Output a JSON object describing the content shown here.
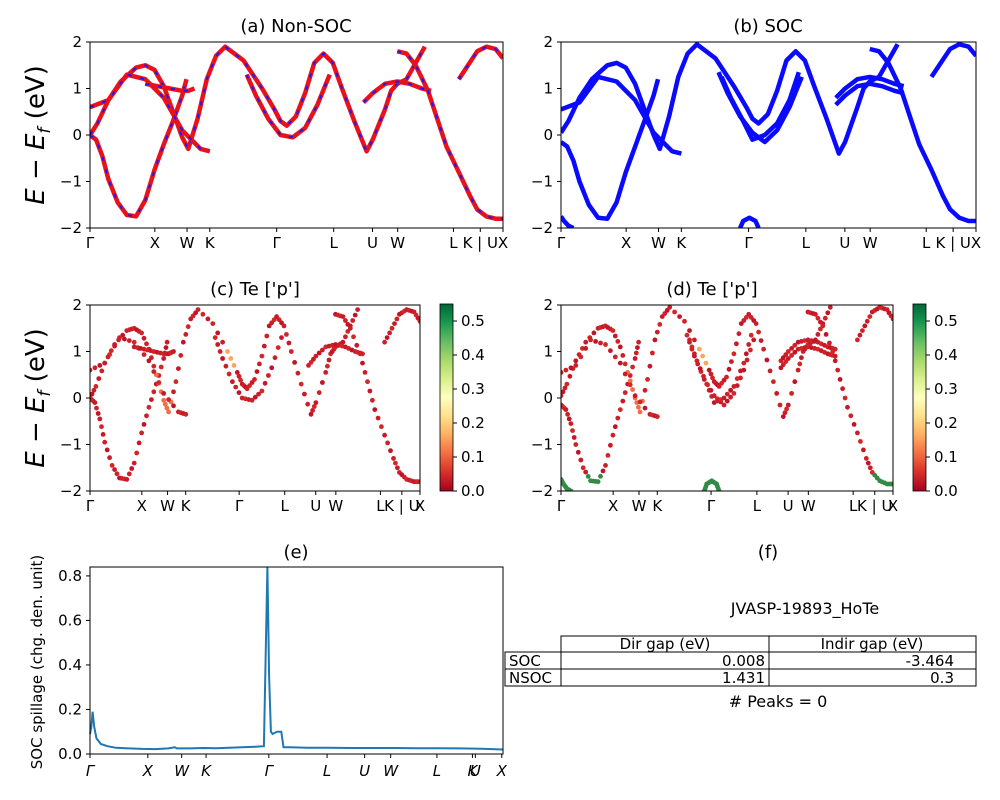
{
  "ylabel_main": "E − E",
  "ylabel_sub": "f",
  "ylabel_unit": " (eV)",
  "kpath_labels": [
    "Γ",
    "X",
    "W",
    "K",
    "Γ",
    "L",
    "U",
    "W",
    "L",
    "K | U",
    "X"
  ],
  "kpath_labels_e": [
    "Γ",
    "X",
    "W",
    "K",
    "Γ",
    "L",
    "U",
    "W",
    "L",
    "K",
    "U",
    "X"
  ],
  "colors": {
    "nonsoc_band": "#e8121c",
    "nonsoc_dash": "#1a1aff",
    "soc_band": "#0a0aff",
    "spillage_line": "#1f77b4"
  },
  "colorbar": {
    "ticks": [
      "0.0",
      "0.1",
      "0.2",
      "0.3",
      "0.4",
      "0.5"
    ],
    "cmap": "RdYlGn"
  },
  "chart_data": [
    {
      "id": "a",
      "type": "line",
      "title": "(a) Non-SOC",
      "ylim": [
        -2,
        2
      ],
      "yticks": [
        "2",
        "1",
        "0",
        "−1",
        "−2"
      ],
      "x_ticks": [
        "Γ",
        "X",
        "W",
        "K",
        "Γ",
        "L",
        "U",
        "W",
        "L",
        "K | U",
        "X"
      ],
      "series": [
        {
          "x": [
            0,
            0.1,
            0.2,
            0.3,
            0.45,
            0.6,
            0.75,
            0.9,
            1.05,
            1.2,
            1.35,
            1.5,
            1.57
          ],
          "y": [
            0,
            -0.1,
            -0.45,
            -0.95,
            -1.45,
            -1.72,
            -1.75,
            -1.4,
            -0.75,
            -0.2,
            0.3,
            0.85,
            1.2
          ]
        },
        {
          "x": [
            0,
            0.12,
            0.3,
            0.5,
            0.75,
            0.9,
            1.05,
            1.2,
            1.35,
            1.5,
            1.6,
            1.75,
            1.9,
            2.05,
            2.2,
            2.5,
            2.8,
            3.0,
            3.1,
            3.2,
            3.35,
            3.5,
            3.65,
            3.8,
            3.95,
            4.1,
            4.3,
            4.5,
            4.6,
            4.8,
            4.9,
            5.0,
            5.15,
            5.3,
            5.45
          ],
          "y": [
            0,
            0.25,
            0.75,
            1.15,
            1.45,
            1.5,
            1.4,
            1.05,
            0.5,
            -0.05,
            -0.3,
            0.35,
            1.2,
            1.7,
            1.9,
            1.6,
            1.0,
            0.55,
            0.3,
            0.2,
            0.4,
            0.9,
            1.55,
            1.75,
            1.55,
            1.0,
            0.3,
            -0.35,
            -0.1,
            0.55,
            0.95,
            1.1,
            1.2,
            1.55,
            1.9
          ]
        },
        {
          "x": [
            0,
            0.3,
            0.6,
            0.9,
            1.2,
            1.5,
            1.8,
            1.95
          ],
          "y": [
            0.6,
            0.75,
            1.3,
            1.2,
            0.8,
            0.1,
            -0.3,
            -0.35
          ]
        },
        {
          "x": [
            2.55,
            2.7,
            2.9,
            3.1,
            3.3,
            3.5,
            3.7,
            3.9
          ],
          "y": [
            1.3,
            0.85,
            0.35,
            0.0,
            -0.05,
            0.15,
            0.65,
            1.3
          ]
        },
        {
          "x": [
            4.45,
            4.6,
            4.8,
            5.0,
            5.2,
            5.4,
            5.55
          ],
          "y": [
            0.7,
            0.9,
            1.1,
            1.15,
            1.1,
            1.0,
            0.95
          ]
        },
        {
          "x": [
            5.0,
            5.15,
            5.3,
            5.5,
            5.65,
            5.8,
            6.0,
            6.18,
            6.3,
            6.45,
            6.6,
            6.72
          ],
          "y": [
            1.8,
            1.75,
            1.5,
            0.95,
            0.35,
            -0.25,
            -0.8,
            -1.3,
            -1.6,
            -1.75,
            -1.8,
            -1.8
          ]
        },
        {
          "x": [
            6.0,
            6.15,
            6.3,
            6.45,
            6.6,
            6.72
          ],
          "y": [
            1.2,
            1.5,
            1.8,
            1.9,
            1.85,
            1.65
          ]
        },
        {
          "x": [
            0.9,
            1.1,
            1.3,
            1.5,
            1.6,
            1.7
          ],
          "y": [
            1.1,
            1.05,
            1.0,
            0.95,
            0.95,
            1.0
          ]
        }
      ]
    },
    {
      "id": "b",
      "type": "line",
      "title": "(b) SOC",
      "ylim": [
        -2,
        2
      ],
      "yticks": [
        "2",
        "1",
        "0",
        "−1",
        "−2"
      ],
      "x_ticks": [
        "Γ",
        "X",
        "W",
        "K",
        "Γ",
        "L",
        "U",
        "W",
        "L",
        "K | U",
        "X"
      ],
      "series": [
        {
          "x": [
            0,
            0.1,
            0.2,
            0.3,
            0.45,
            0.6,
            0.75,
            0.9,
            1.05,
            1.2,
            1.35,
            1.5,
            1.57
          ],
          "y": [
            -0.15,
            -0.25,
            -0.55,
            -1.0,
            -1.5,
            -1.78,
            -1.8,
            -1.45,
            -0.8,
            -0.25,
            0.3,
            0.85,
            1.2
          ]
        },
        {
          "x": [
            0,
            0.12,
            0.3,
            0.5,
            0.75,
            0.9,
            1.05,
            1.2,
            1.35,
            1.5,
            1.6,
            1.75,
            1.9,
            2.05,
            2.2,
            2.5,
            2.8,
            3.0,
            3.1,
            3.2,
            3.35,
            3.5,
            3.65,
            3.8,
            3.95,
            4.1,
            4.3,
            4.5,
            4.6,
            4.8,
            4.9,
            5.0,
            5.15,
            5.3,
            5.45
          ],
          "y": [
            0.05,
            0.3,
            0.8,
            1.2,
            1.5,
            1.55,
            1.45,
            1.1,
            0.55,
            0.0,
            -0.3,
            0.4,
            1.25,
            1.75,
            1.95,
            1.65,
            1.05,
            0.6,
            0.35,
            0.25,
            0.45,
            0.95,
            1.6,
            1.8,
            1.6,
            1.05,
            0.35,
            -0.4,
            -0.15,
            0.6,
            1.0,
            1.15,
            1.25,
            1.6,
            1.95
          ]
        },
        {
          "x": [
            0,
            0.3,
            0.6,
            0.9,
            1.2,
            1.5,
            1.8,
            1.95
          ],
          "y": [
            0.55,
            0.7,
            1.25,
            1.15,
            0.75,
            0.05,
            -0.35,
            -0.4
          ]
        },
        {
          "x": [
            2.55,
            2.7,
            2.9,
            3.1,
            3.3,
            3.5,
            3.7,
            3.9
          ],
          "y": [
            1.35,
            0.9,
            0.4,
            0.05,
            -0.15,
            0.1,
            0.6,
            1.25
          ]
        },
        {
          "x": [
            2.6,
            2.75,
            2.95,
            3.1,
            3.3,
            3.5,
            3.7,
            3.85
          ],
          "y": [
            1.25,
            0.8,
            0.3,
            -0.1,
            0.0,
            0.25,
            0.75,
            1.35
          ]
        },
        {
          "x": [
            4.45,
            4.6,
            4.8,
            5.0,
            5.2,
            5.4,
            5.55
          ],
          "y": [
            0.65,
            0.85,
            1.05,
            1.1,
            1.05,
            0.95,
            0.9
          ]
        },
        {
          "x": [
            4.45,
            4.6,
            4.8,
            5.0,
            5.2,
            5.4,
            5.55
          ],
          "y": [
            0.8,
            1.0,
            1.2,
            1.25,
            1.2,
            1.1,
            1.05
          ]
        },
        {
          "x": [
            5.0,
            5.15,
            5.3,
            5.5,
            5.65,
            5.8,
            6.0,
            6.18,
            6.3,
            6.45,
            6.6,
            6.72
          ],
          "y": [
            1.85,
            1.8,
            1.55,
            1.0,
            0.4,
            -0.2,
            -0.75,
            -1.3,
            -1.6,
            -1.78,
            -1.85,
            -1.85
          ]
        },
        {
          "x": [
            6.0,
            6.15,
            6.3,
            6.45,
            6.6,
            6.72
          ],
          "y": [
            1.25,
            1.55,
            1.85,
            1.95,
            1.9,
            1.7
          ]
        },
        {
          "x": [
            0,
            0.05,
            0.12,
            0.2
          ],
          "y": [
            -1.75,
            -1.85,
            -1.95,
            -2.0
          ]
        },
        {
          "x": [
            2.9,
            2.95,
            3.05,
            3.15,
            3.2
          ],
          "y": [
            -2.0,
            -1.85,
            -1.78,
            -1.85,
            -2.0
          ]
        }
      ]
    },
    {
      "id": "c",
      "type": "scatter",
      "title": "(c)  Te ['p']",
      "ylim": [
        -2,
        2
      ],
      "yticks": [
        "2",
        "1",
        "0",
        "−1",
        "−2"
      ],
      "x_ticks": [
        "Γ",
        "X",
        "W",
        "K",
        "Γ",
        "L",
        "U",
        "W",
        "L",
        "K | U",
        "X"
      ],
      "colorbar_ticks": [
        "0.0",
        "0.1",
        "0.2",
        "0.3",
        "0.4",
        "0.5"
      ]
    },
    {
      "id": "d",
      "type": "scatter",
      "title": "(d) Te ['p']",
      "ylim": [
        -2,
        2
      ],
      "yticks": [
        "2",
        "1",
        "0",
        "−1",
        "−2"
      ],
      "x_ticks": [
        "Γ",
        "X",
        "W",
        "K",
        "Γ",
        "L",
        "U",
        "W",
        "L",
        "K | U",
        "X"
      ],
      "colorbar_ticks": [
        "0.0",
        "0.1",
        "0.2",
        "0.3",
        "0.4",
        "0.5"
      ]
    },
    {
      "id": "e",
      "type": "line",
      "title": "(e)",
      "ylabel": "SOC spillage (chg. den. unit)",
      "ylim": [
        0,
        0.84
      ],
      "yticks": [
        "0.8",
        "0.6",
        "0.4",
        "0.2",
        "0.0"
      ],
      "ytick_values": [
        0.8,
        0.6,
        0.4,
        0.2,
        0.0
      ],
      "x_ticks": [
        "Γ",
        "X",
        "W",
        "K",
        "Γ",
        "L",
        "U",
        "W",
        "L",
        "K",
        "U",
        "X"
      ],
      "x": [
        0,
        0.03,
        0.06,
        0.1,
        0.15,
        0.25,
        0.4,
        0.6,
        0.9,
        1.2,
        1.5,
        1.8,
        1.95,
        2.0,
        2.3,
        2.6,
        2.9,
        3.2,
        3.5,
        3.8,
        4.0,
        4.08,
        4.12,
        4.16,
        4.2,
        4.3,
        4.4,
        4.45,
        4.6,
        5.0,
        5.5,
        6.0,
        6.5,
        7.0,
        7.5,
        8.0,
        8.5,
        9.0,
        9.5
      ],
      "y": [
        0.09,
        0.12,
        0.19,
        0.12,
        0.07,
        0.045,
        0.035,
        0.028,
        0.025,
        0.023,
        0.022,
        0.025,
        0.03,
        0.025,
        0.025,
        0.027,
        0.026,
        0.028,
        0.03,
        0.033,
        0.035,
        0.84,
        0.35,
        0.1,
        0.09,
        0.1,
        0.1,
        0.03,
        0.03,
        0.028,
        0.028,
        0.027,
        0.027,
        0.027,
        0.026,
        0.026,
        0.025,
        0.024,
        0.02
      ]
    },
    {
      "id": "f",
      "type": "table",
      "title": "(f)",
      "caption": "JVASP-19893_HoTe",
      "columns": [
        "Dir gap (eV)",
        "Indir gap (eV)"
      ],
      "rows": [
        {
          "label": "SOC",
          "values": [
            "0.008",
            "-3.464"
          ]
        },
        {
          "label": "NSOC",
          "values": [
            "1.431",
            "0.3"
          ]
        }
      ],
      "footer": "# Peaks = 0"
    }
  ]
}
